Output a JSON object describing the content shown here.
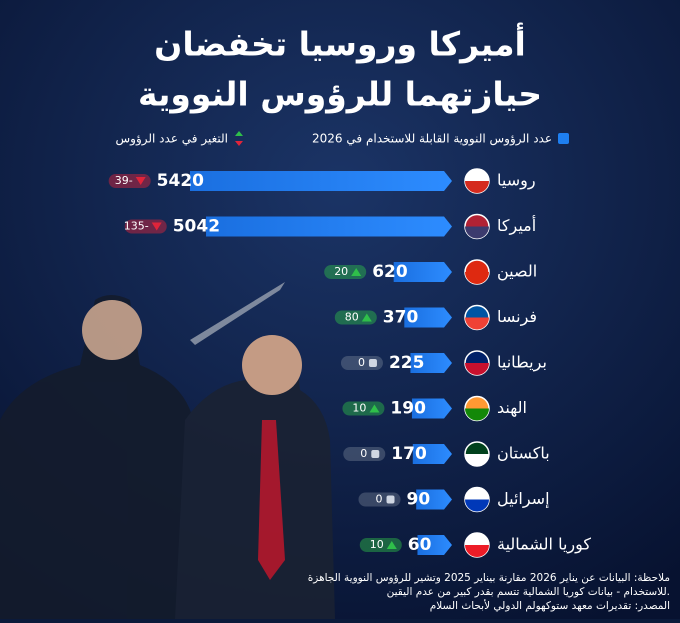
{
  "chart_data": {
    "type": "bar",
    "title": [
      "أميركا وروسيا تخفضان",
      "حيازتهما للرؤوس النووية"
    ],
    "categories": [
      "روسيا",
      "أميركا",
      "الصين",
      "فرنسا",
      "بريطانيا",
      "الهند",
      "باكستان",
      "إسرائيل",
      "كوريا الشمالية"
    ],
    "series": [
      {
        "name": "عدد الرؤوس النووية القابلة للاستخدام في 2026",
        "color": "#1e7ff0",
        "values": [
          5420,
          5042,
          620,
          370,
          225,
          190,
          170,
          90,
          60
        ]
      },
      {
        "name": "التغير في عدد الرؤوس",
        "color": "#2fbf4a",
        "values": [
          -39,
          -135,
          20,
          80,
          0,
          10,
          0,
          0,
          10
        ],
        "value_labels": [
          "39-",
          "135-",
          "20",
          "80",
          "0",
          "10",
          "0",
          "0",
          "10"
        ]
      }
    ],
    "notes": [
      "ملاحظة: البيانات عن يناير 2026 مقارنة بيناير 2025 وتشير للرؤوس النووية الجاهزة",
      "للاستخدام - بيانات كوريا الشمالية تتسم بقدر كبير من عدم اليقين.",
      "المصدر: تقديرات معهد ستوكهولم الدولي لأبحاث السلام"
    ]
  }
}
